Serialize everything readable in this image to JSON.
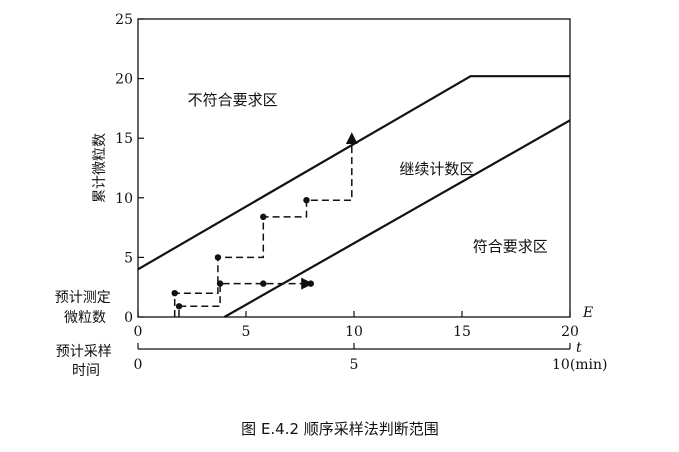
{
  "chart_data": {
    "type": "line",
    "title": "",
    "caption": "图 E.4.2 顺序采样法判断范围",
    "ylabel": "累计微粒数",
    "xlabel": "E",
    "xlim": [
      0,
      20
    ],
    "ylim": [
      0,
      25
    ],
    "x_ticks": [
      0,
      5,
      10,
      15,
      20
    ],
    "y_ticks": [
      0,
      5,
      10,
      15,
      20,
      25
    ],
    "y_zero_label": "预计测定微粒数",
    "y_zero_label_lines": [
      "预计测定",
      "微粒数"
    ],
    "time_axis": {
      "label": "t",
      "title": "预计采样时间",
      "title_lines": [
        "预计采样",
        "时间"
      ],
      "range": [
        0,
        10
      ],
      "tick_labels": [
        "0",
        "5",
        "10(min)"
      ]
    },
    "regions": [
      {
        "label": "不符合要求区",
        "anchor": [
          2.3,
          17.8
        ]
      },
      {
        "label": "继续计数区",
        "anchor": [
          12.1,
          12.0
        ]
      },
      {
        "label": "符合要求区",
        "anchor": [
          15.5,
          5.5
        ]
      }
    ],
    "series": [
      {
        "style": "solid",
        "points": [
          [
            0,
            4.0
          ],
          [
            15.4,
            20.2
          ],
          [
            20,
            20.2
          ]
        ]
      },
      {
        "style": "solid",
        "points": [
          [
            4.0,
            0
          ],
          [
            20,
            16.5
          ]
        ]
      },
      {
        "style": "dashed-arrow",
        "points": [
          [
            1.7,
            0
          ],
          [
            1.7,
            2.0
          ],
          [
            3.7,
            2.0
          ],
          [
            3.7,
            5.0
          ],
          [
            5.8,
            5.0
          ],
          [
            5.8,
            8.4
          ],
          [
            7.8,
            8.4
          ],
          [
            7.8,
            9.8
          ],
          [
            9.9,
            9.8
          ],
          [
            9.9,
            15.3
          ]
        ],
        "dots": [
          [
            1.7,
            2.0
          ],
          [
            3.7,
            5.0
          ],
          [
            5.8,
            8.4
          ],
          [
            7.8,
            9.8
          ]
        ]
      },
      {
        "style": "dashed-arrow",
        "points": [
          [
            1.9,
            0
          ],
          [
            1.9,
            0.9
          ],
          [
            3.8,
            0.9
          ],
          [
            3.8,
            2.8
          ],
          [
            8.0,
            2.8
          ]
        ],
        "dots": [
          [
            1.9,
            0.9
          ],
          [
            3.8,
            2.8
          ],
          [
            5.8,
            2.8
          ],
          [
            8.0,
            2.8
          ]
        ]
      }
    ]
  }
}
